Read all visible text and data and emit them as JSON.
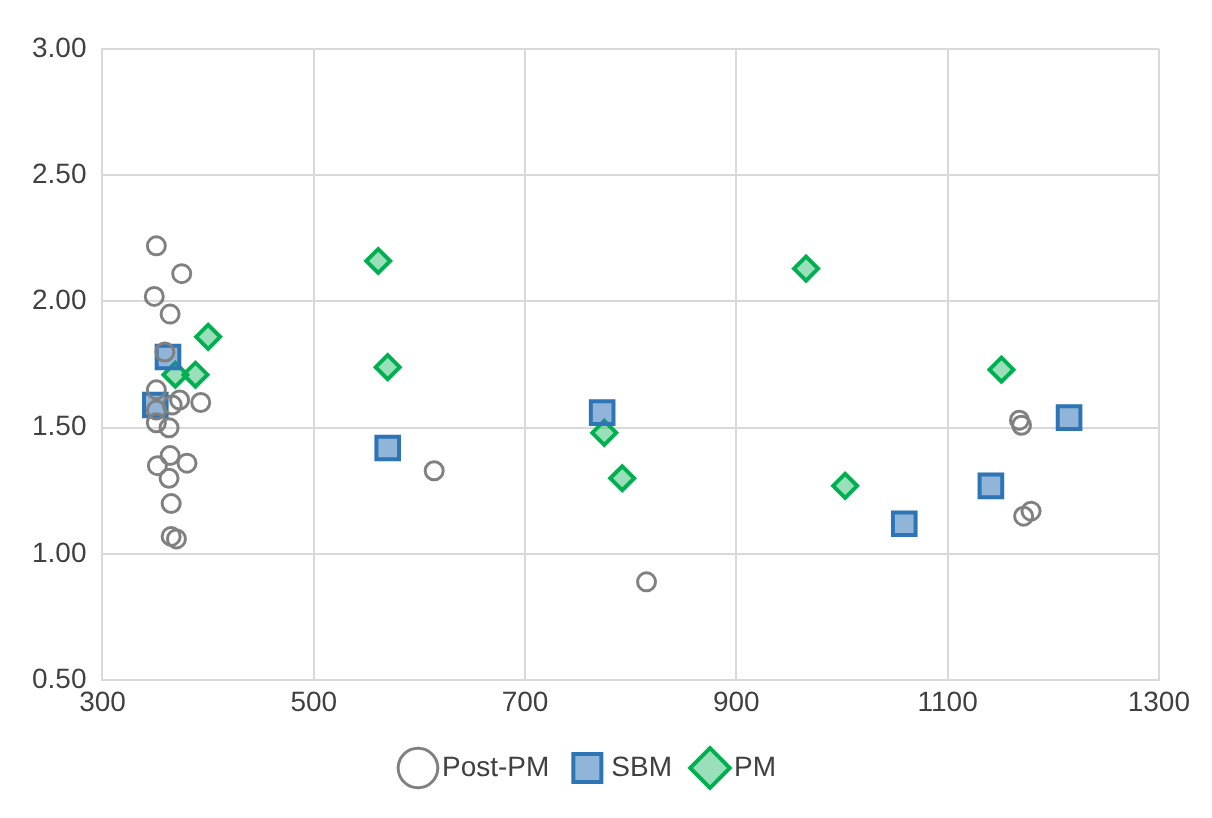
{
  "chart_data": {
    "type": "scatter",
    "xlim": [
      300,
      1300
    ],
    "xticks": [
      300,
      500,
      700,
      900,
      1100,
      1300
    ],
    "ylim": [
      0.5,
      3
    ],
    "yticks": [
      {
        "value": 0.5,
        "label": "0.50"
      },
      {
        "value": 1,
        "label": "1.00"
      },
      {
        "value": 1.5,
        "label": "1.50"
      },
      {
        "value": 2,
        "label": "2.00"
      },
      {
        "value": 2.5,
        "label": "2.50"
      },
      {
        "value": 3,
        "label": "3.00"
      }
    ],
    "grid": true,
    "legend": "bottom",
    "series": [
      {
        "name": "Post-PM",
        "color": "#808080",
        "marker": "circle",
        "x": [
          351,
          375,
          349,
          364,
          359,
          351,
          373,
          393,
          351,
          366,
          351,
          363,
          352,
          364,
          380,
          363,
          365,
          365,
          370,
          614,
          815,
          1168,
          1170,
          1172,
          1179
        ],
        "values": [
          2.22,
          2.11,
          2.02,
          1.95,
          1.8,
          1.65,
          1.61,
          1.6,
          1.57,
          1.59,
          1.52,
          1.5,
          1.35,
          1.39,
          1.36,
          1.3,
          1.2,
          1.07,
          1.06,
          1.33,
          0.89,
          1.53,
          1.51,
          1.15,
          1.17
        ]
      },
      {
        "name": "SBM",
        "color": "#2e75b6",
        "marker": "square",
        "x": [
          362,
          350,
          570,
          773,
          1059,
          1141,
          1215
        ],
        "values": [
          1.78,
          1.59,
          1.42,
          1.56,
          1.12,
          1.27,
          1.54
        ]
      },
      {
        "name": "PM",
        "color": "#00b050",
        "marker": "diamond",
        "x": [
          400,
          369,
          388,
          561,
          570,
          775,
          792,
          966,
          1003,
          1151
        ],
        "values": [
          1.86,
          1.71,
          1.71,
          2.16,
          1.74,
          1.48,
          1.3,
          2.13,
          1.27,
          1.73
        ]
      }
    ]
  }
}
